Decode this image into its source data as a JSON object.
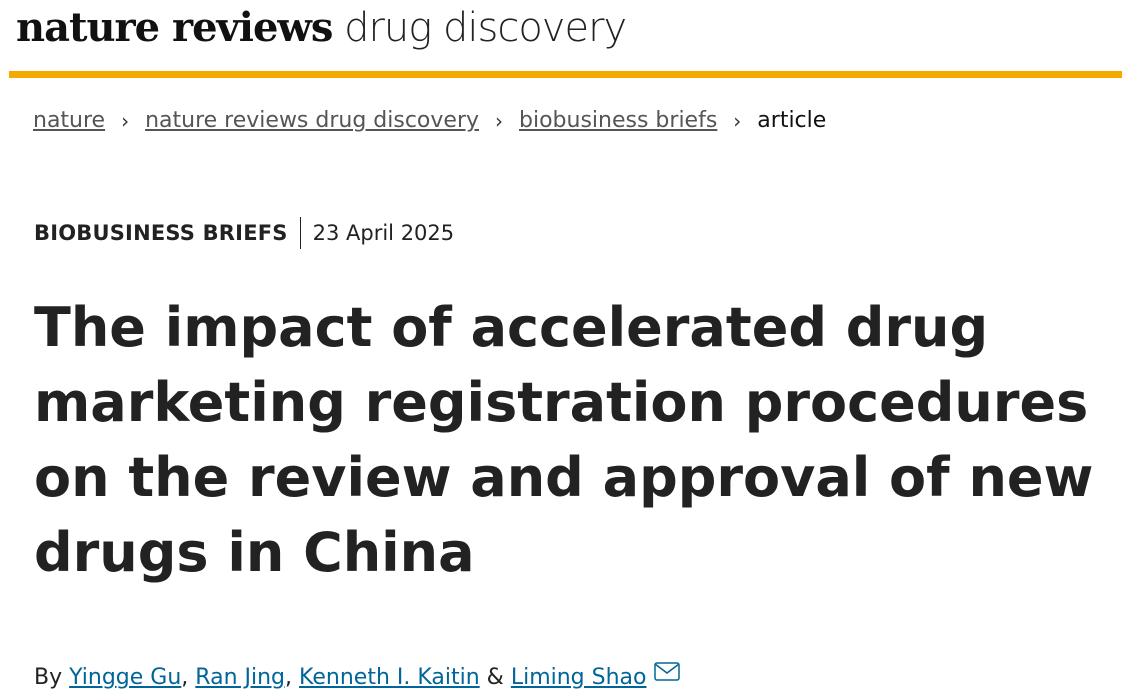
{
  "header": {
    "brand_bold": "nature reviews",
    "brand_light": "drug discovery"
  },
  "breadcrumbs": [
    "nature",
    "nature reviews drug discovery",
    "biobusiness briefs",
    "article"
  ],
  "article": {
    "section": "BIOBUSINESS BRIEFS",
    "date": "23 April 2025",
    "title": "The impact of accelerated drug marketing registration procedures on the review and approval of new drugs in China",
    "by": "By",
    "authors": [
      "Yingge Gu",
      "Ran Jing",
      "Kenneth I. Kaitin",
      "Liming Shao"
    ],
    "comma": ",",
    "amp": "&"
  }
}
